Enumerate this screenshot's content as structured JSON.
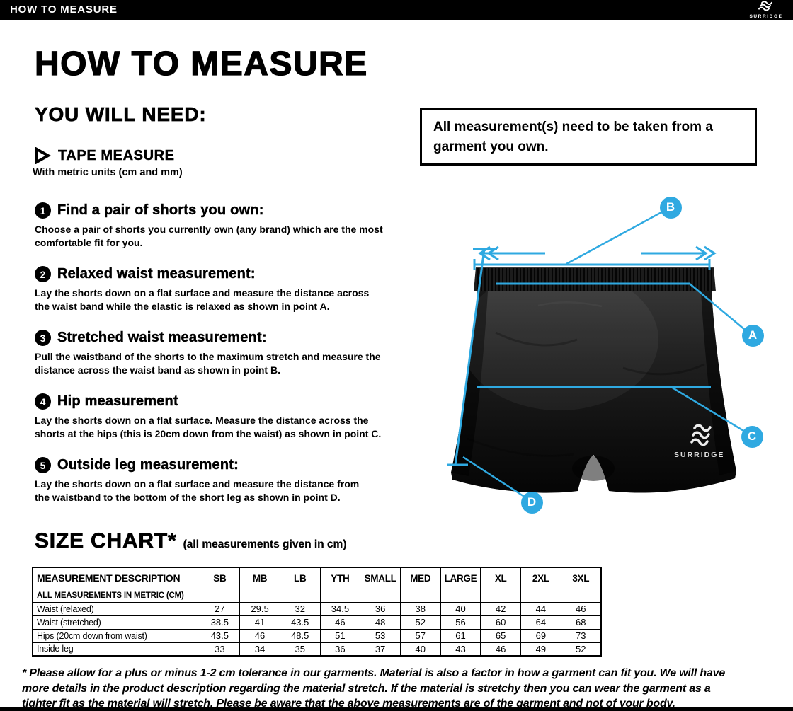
{
  "topbar": {
    "title": "HOW TO MEASURE",
    "brand": "SURRIDGE"
  },
  "page_title": "HOW TO MEASURE",
  "you_will_need": {
    "heading": "YOU WILL NEED:",
    "item_title": "TAPE MEASURE",
    "item_subtitle": "With metric units (cm and mm)"
  },
  "notice": "All measurement(s) need to be taken from a\ngarment you own.",
  "steps": [
    {
      "num": "1",
      "title": "Find a pair of shorts you own:",
      "body": "Choose a pair of shorts you currently own (any brand) which are the most\ncomfortable fit for you."
    },
    {
      "num": "2",
      "title": "Relaxed waist measurement:",
      "body": "Lay the shorts down on a flat surface and measure the distance across\nthe waist band while the elastic is relaxed as shown in point A."
    },
    {
      "num": "3",
      "title": "Stretched waist measurement:",
      "body": "Pull the waistband of the shorts to the maximum stretch and measure the\ndistance across the waist band as shown in point B."
    },
    {
      "num": "4",
      "title": "Hip measurement",
      "body": "Lay the shorts down on a flat surface. Measure the distance across the\nshorts at the hips (this is 20cm down from the waist)  as shown in point C."
    },
    {
      "num": "5",
      "title": "Outside leg measurement:",
      "body": "Lay the shorts down on a flat surface and measure the distance from\nthe waistband to the bottom of the short leg as shown in point D."
    }
  ],
  "diagram": {
    "points": [
      "B",
      "A",
      "C",
      "D"
    ],
    "brand": "SURRIDGE",
    "accent_color": "#2fa9e1"
  },
  "size_chart": {
    "heading": "SIZE CHART*",
    "subheading": "(all measurements given in cm)",
    "columns": [
      "MEASUREMENT DESCRIPTION",
      "SB",
      "MB",
      "LB",
      "YTH",
      "SMALL",
      "MED",
      "LARGE",
      "XL",
      "2XL",
      "3XL"
    ],
    "metric_note": "ALL MEASUREMENTS IN METRIC (CM)",
    "rows": [
      {
        "label": "Waist (relaxed)",
        "values": [
          "27",
          "29.5",
          "32",
          "34.5",
          "36",
          "38",
          "40",
          "42",
          "44",
          "46"
        ]
      },
      {
        "label": "Waist (stretched)",
        "values": [
          "38.5",
          "41",
          "43.5",
          "46",
          "48",
          "52",
          "56",
          "60",
          "64",
          "68"
        ]
      },
      {
        "label": "Hips (20cm down from waist)",
        "values": [
          "43.5",
          "46",
          "48.5",
          "51",
          "53",
          "57",
          "61",
          "65",
          "69",
          "73"
        ]
      },
      {
        "label": "Inside leg",
        "values": [
          "33",
          "34",
          "35",
          "36",
          "37",
          "40",
          "43",
          "46",
          "49",
          "52"
        ]
      }
    ]
  },
  "footnote": "* Please allow for a plus or minus 1-2 cm tolerance in our garments. Material is also a factor in how a garment can fit you. We will have\nmore details in the product description regarding the material stretch.  If the material is stretchy then you can wear the garment as a\ntighter fit as the material will stretch.  Please be aware that the above measurements are of the garment and not of your body."
}
